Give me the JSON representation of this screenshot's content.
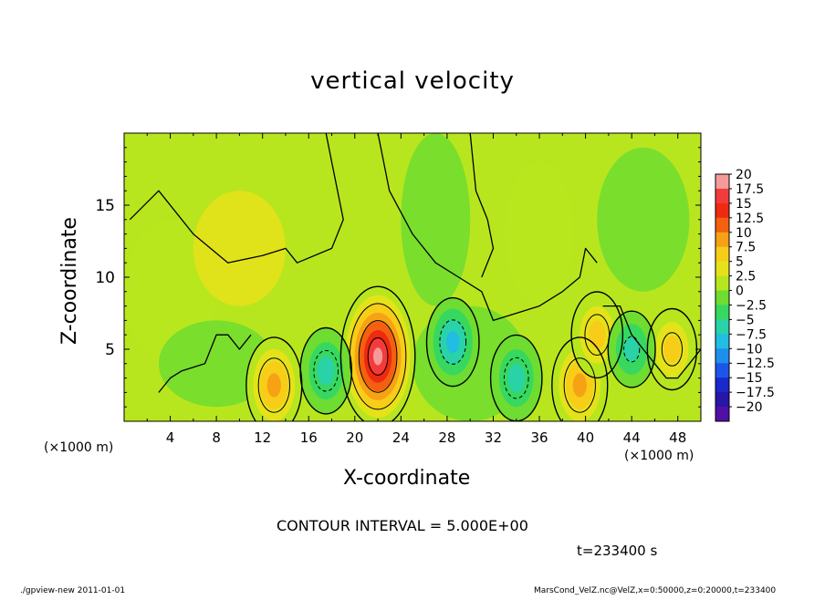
{
  "figure": {
    "title": "vertical velocity",
    "contour_interval": "CONTOUR INTERVAL = 5.000E+00",
    "time": "t=233400 s",
    "footer_left": "./gpview-new   2011-01-01",
    "footer_right": "MarsCond_VelZ.nc@VelZ,x=0:50000,z=0:20000,t=233400"
  },
  "chart_data": {
    "type": "heatmap",
    "title": "vertical velocity",
    "xlabel": "X-coordinate",
    "ylabel": "Z-coordinate",
    "x_unit": "(×1000 m)",
    "xlim": [
      0,
      50
    ],
    "ylim": [
      0,
      20
    ],
    "x_ticks": [
      "4",
      "8",
      "12",
      "16",
      "20",
      "24",
      "28",
      "32",
      "36",
      "40",
      "44",
      "48"
    ],
    "y_ticks": [
      "5",
      "10",
      "15"
    ],
    "colorbar": {
      "levels": [
        "20",
        "17.5",
        "15",
        "12.5",
        "10",
        "7.5",
        "5",
        "2.5",
        "0",
        "-2.5",
        "-5",
        "-7.5",
        "-10",
        "-12.5",
        "-15",
        "-17.5",
        "-20"
      ],
      "colors": [
        "#f59a9a",
        "#f23c3c",
        "#ee2a10",
        "#f46010",
        "#f7a214",
        "#f7cd18",
        "#e6e21a",
        "#b8e61e",
        "#6edc30",
        "#36d860",
        "#2ad2a8",
        "#22bde2",
        "#1c90ec",
        "#1c56e8",
        "#1a28cc",
        "#2816a6",
        "#5010a6"
      ]
    },
    "contour_interval": 5,
    "features": [
      {
        "x": 22,
        "z": 4.5,
        "value": 18,
        "sign": "up"
      },
      {
        "x": 13,
        "z": 2.5,
        "value": 9,
        "sign": "up"
      },
      {
        "x": 39.5,
        "z": 2.5,
        "value": 9,
        "sign": "up"
      },
      {
        "x": 41,
        "z": 6,
        "value": 7,
        "sign": "up"
      },
      {
        "x": 47.5,
        "z": 5,
        "value": 6,
        "sign": "up"
      },
      {
        "x": 28.5,
        "z": 5.5,
        "value": -7.5,
        "sign": "down"
      },
      {
        "x": 34,
        "z": 3,
        "value": -7,
        "sign": "down"
      },
      {
        "x": 17.5,
        "z": 3.5,
        "value": -7,
        "sign": "down"
      },
      {
        "x": 44,
        "z": 5,
        "value": -5,
        "sign": "down"
      }
    ],
    "grid": false
  }
}
